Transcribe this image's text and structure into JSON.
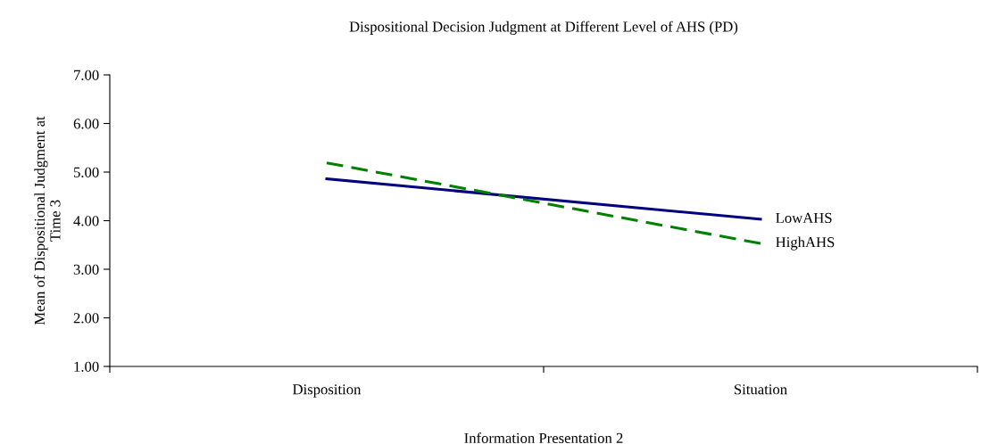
{
  "chart_data": {
    "type": "line",
    "title": "Dispositional Decision Judgment at Different Level of AHS (PD)",
    "xlabel": "Information Presentation 2",
    "ylabel": "Mean of Dispositional Judgment at\nTime 3",
    "categories": [
      "Disposition",
      "Situation"
    ],
    "series": [
      {
        "name": "LowAHS",
        "color": "#000080",
        "values": [
          4.86,
          4.03
        ],
        "line_style": "solid"
      },
      {
        "name": "HighAHS",
        "color": "#008000",
        "values": [
          5.19,
          3.53
        ],
        "line_style": "dashed"
      }
    ],
    "ylim": [
      1,
      7
    ],
    "yticks": [
      {
        "value": 1,
        "label": "1.00"
      },
      {
        "value": 2,
        "label": "2.00"
      },
      {
        "value": 3,
        "label": "3.00"
      },
      {
        "value": 4,
        "label": "4.00"
      },
      {
        "value": 5,
        "label": "5.00"
      },
      {
        "value": 6,
        "label": "6.00"
      },
      {
        "value": 7,
        "label": "7.00"
      }
    ],
    "grid": false,
    "legend": false,
    "marker": "none"
  }
}
